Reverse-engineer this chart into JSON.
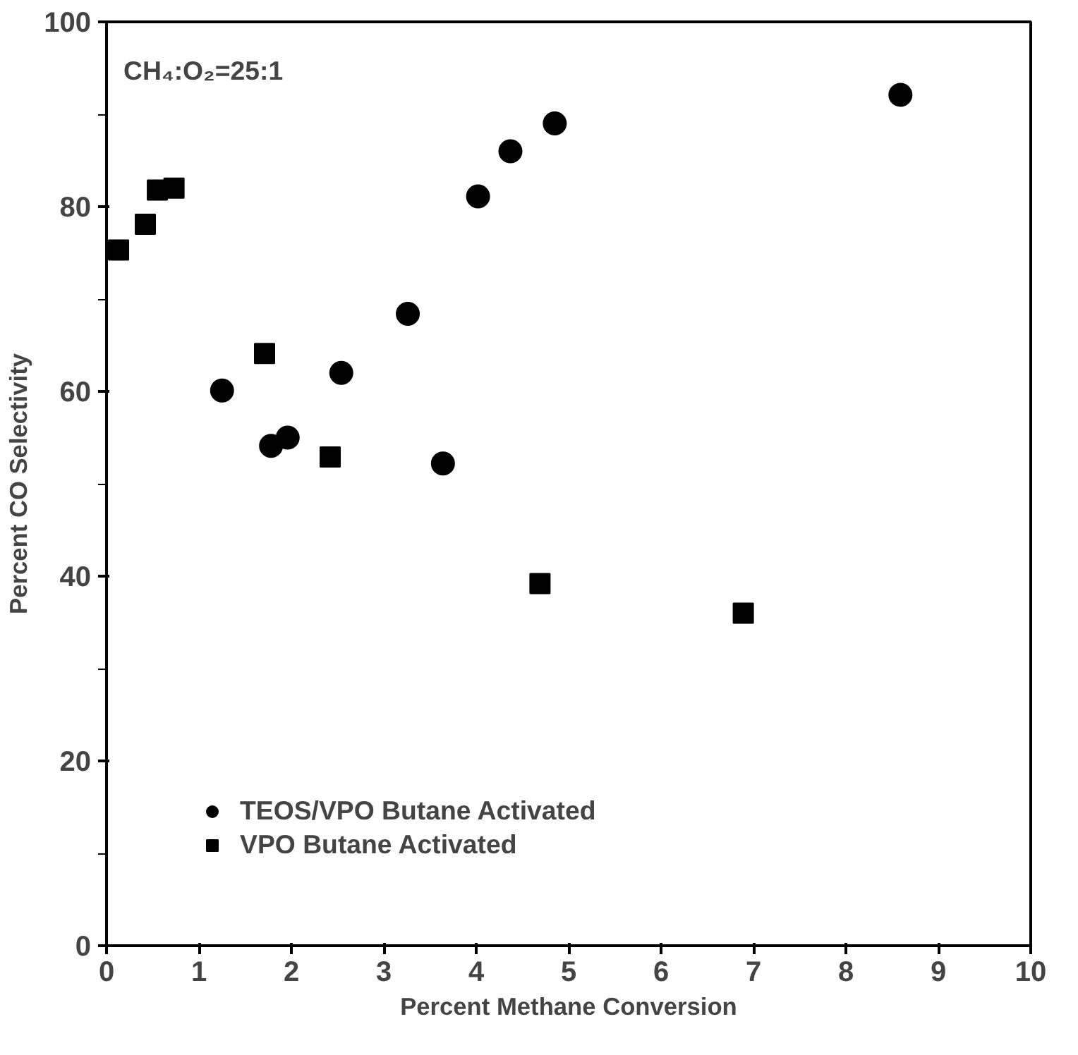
{
  "chart_data": {
    "type": "scatter",
    "xlabel": "Percent Methane Conversion",
    "ylabel": "Percent CO Selectivity",
    "xlim": [
      0,
      10
    ],
    "ylim": [
      0,
      100
    ],
    "xticks": [
      0,
      1,
      2,
      3,
      4,
      5,
      6,
      7,
      8,
      9,
      10
    ],
    "yticks": [
      0,
      20,
      40,
      60,
      80,
      100
    ],
    "grid": false,
    "legend": "bottom left",
    "annotations": [
      "CH₄:O₂=25:1"
    ],
    "series": [
      {
        "name": "TEOS/VPO Butane Activated",
        "color": "#000000",
        "marker": "circle",
        "x": [
          1.25,
          1.78,
          1.96,
          2.54,
          3.26,
          3.64,
          4.02,
          4.37,
          4.85,
          8.59
        ],
        "values": [
          60.1,
          54.1,
          55.0,
          62.0,
          68.4,
          52.2,
          81.1,
          86.0,
          89.0,
          92.1
        ]
      },
      {
        "name": "VPO Butane Activated",
        "color": "#000000",
        "marker": "square",
        "x": [
          0.13,
          0.42,
          0.55,
          0.73,
          1.71,
          2.42,
          4.69,
          6.89
        ],
        "values": [
          75.3,
          78.1,
          81.8,
          82.0,
          64.1,
          52.9,
          39.2,
          36.0
        ]
      }
    ]
  }
}
